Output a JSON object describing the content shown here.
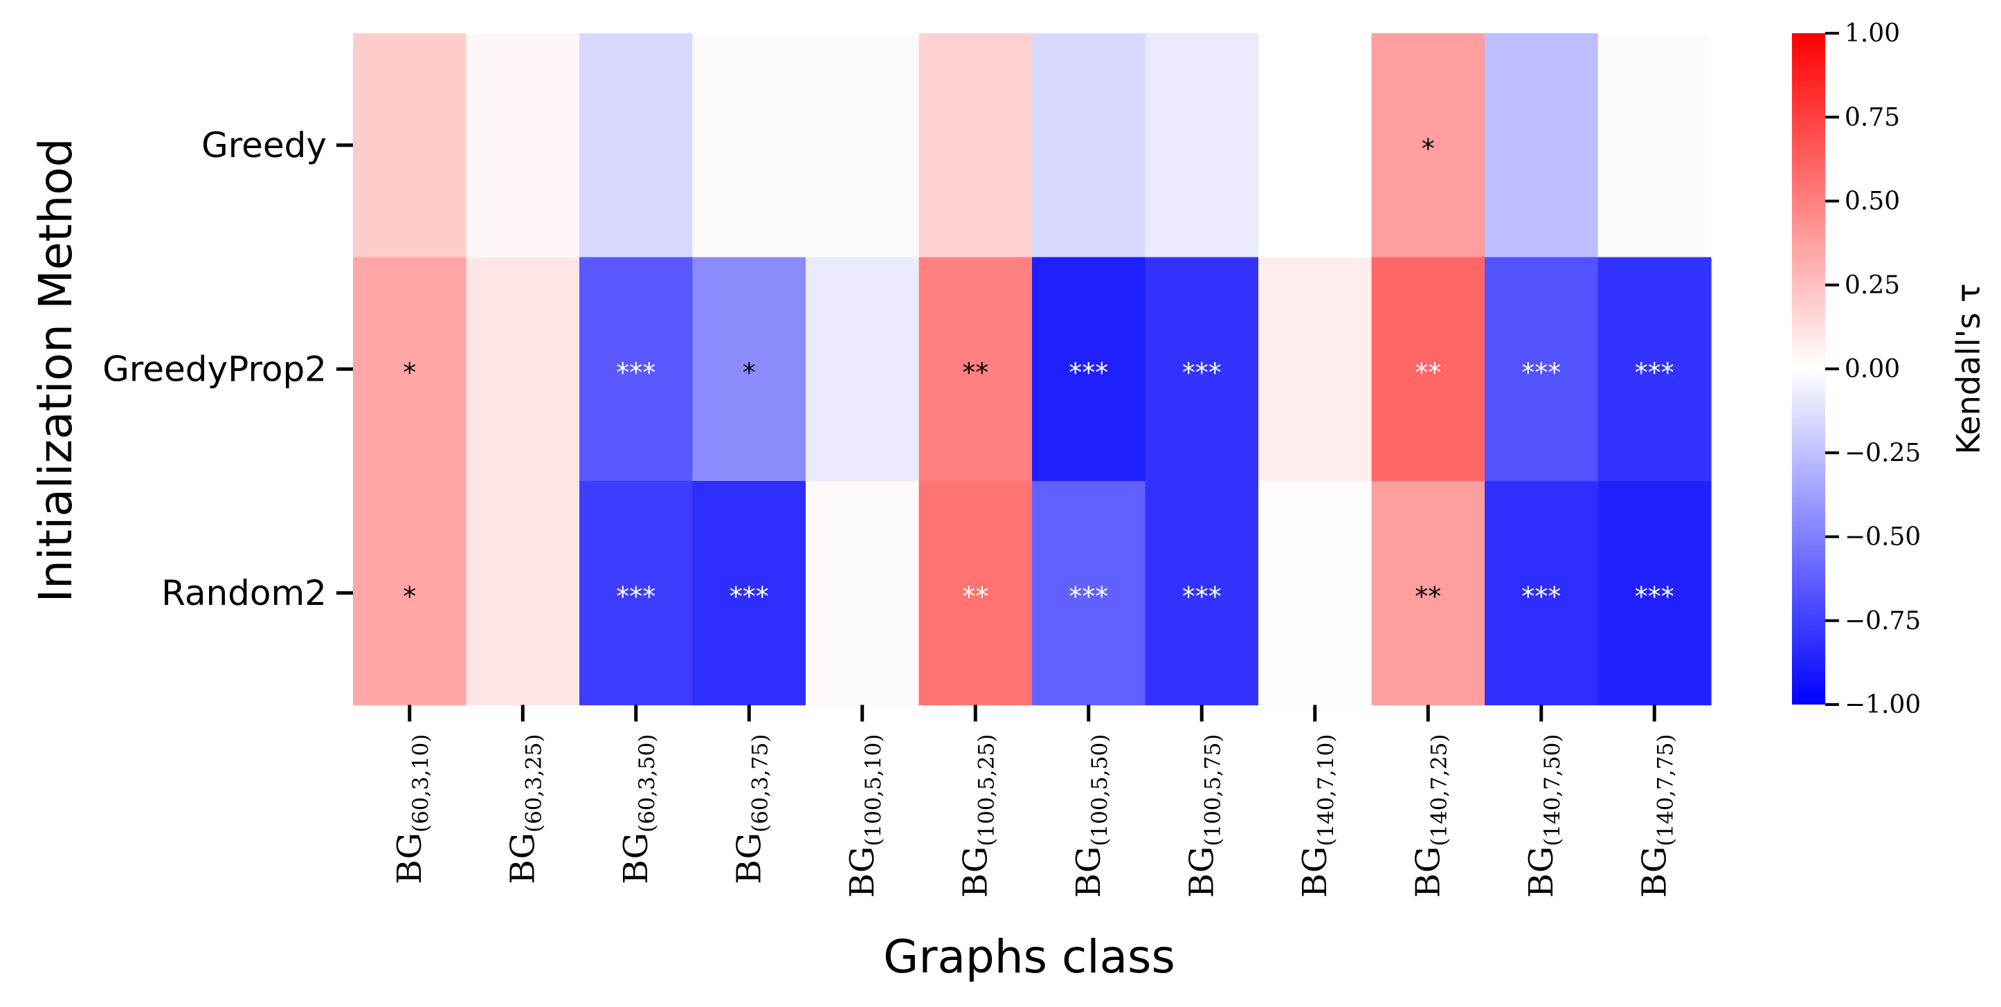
{
  "chart_data": {
    "type": "heatmap",
    "title": "",
    "xlabel": "Graphs class",
    "ylabel": "Initialization Method",
    "rows": [
      "Greedy",
      "GreedyProp2",
      "Random2"
    ],
    "columns": [
      {
        "base": "BG",
        "sub": "(60,3,10)"
      },
      {
        "base": "BG",
        "sub": "(60,3,25)"
      },
      {
        "base": "BG",
        "sub": "(60,3,50)"
      },
      {
        "base": "BG",
        "sub": "(60,3,75)"
      },
      {
        "base": "BG",
        "sub": "(100,5,10)"
      },
      {
        "base": "BG",
        "sub": "(100,5,25)"
      },
      {
        "base": "BG",
        "sub": "(100,5,50)"
      },
      {
        "base": "BG",
        "sub": "(100,5,75)"
      },
      {
        "base": "BG",
        "sub": "(140,7,10)"
      },
      {
        "base": "BG",
        "sub": "(140,7,25)"
      },
      {
        "base": "BG",
        "sub": "(140,7,50)"
      },
      {
        "base": "BG",
        "sub": "(140,7,75)"
      }
    ],
    "values": [
      [
        0.2,
        0.03,
        -0.15,
        0.02,
        0.02,
        0.18,
        -0.15,
        -0.08,
        0.0,
        0.38,
        -0.26,
        0.02
      ],
      [
        0.35,
        0.1,
        -0.65,
        -0.45,
        -0.08,
        0.5,
        -0.88,
        -0.8,
        0.07,
        0.6,
        -0.68,
        -0.8
      ],
      [
        0.35,
        0.1,
        -0.76,
        -0.82,
        0.02,
        0.55,
        -0.62,
        -0.8,
        0.01,
        0.38,
        -0.82,
        -0.87
      ]
    ],
    "annotations": [
      [
        "",
        "",
        "",
        "",
        "",
        "",
        "",
        "",
        "",
        "*",
        "",
        ""
      ],
      [
        "*",
        "",
        "***",
        "*",
        "",
        "**",
        "***",
        "***",
        "",
        "**",
        "***",
        "***"
      ],
      [
        "*",
        "",
        "***",
        "***",
        "",
        "**",
        "***",
        "***",
        "",
        "**",
        "***",
        "***"
      ]
    ],
    "colorbar": {
      "label": "Kendall's τ",
      "range": [
        -1.0,
        1.0
      ],
      "ticks": [
        "1.00",
        "0.75",
        "0.50",
        "0.25",
        "0.00",
        "−0.25",
        "−0.50",
        "−0.75",
        "−1.00"
      ],
      "low_color": "#0000ff",
      "mid_color": "#ffffff",
      "high_color": "#ff0000"
    }
  }
}
